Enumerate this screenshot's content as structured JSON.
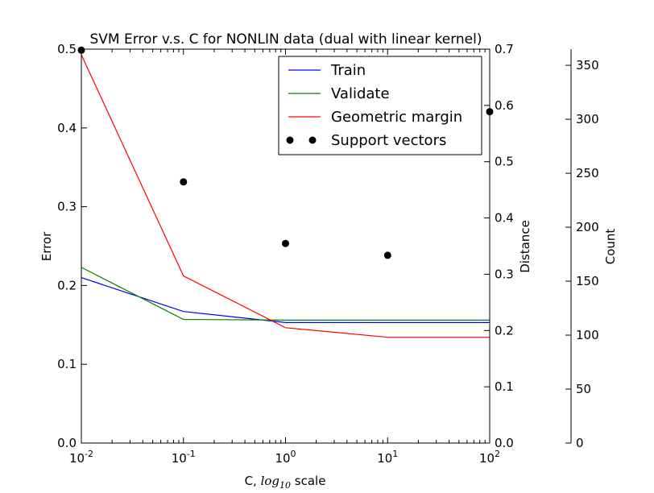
{
  "chart_data": {
    "type": "line",
    "title": "SVM Error v.s. C for NONLIN data (dual with linear kernel)",
    "x_axis": {
      "label_prefix": "C, ",
      "label_math": "log",
      "label_sub": "10",
      "label_suffix": " scale",
      "scale": "log",
      "range": [
        0.01,
        100
      ],
      "ticks": [
        {
          "value": 0.01,
          "base": "10",
          "exp": "-2"
        },
        {
          "value": 0.1,
          "base": "10",
          "exp": "-1"
        },
        {
          "value": 1,
          "base": "10",
          "exp": "0"
        },
        {
          "value": 10,
          "base": "10",
          "exp": "1"
        },
        {
          "value": 100,
          "base": "10",
          "exp": "2"
        }
      ]
    },
    "y_left": {
      "label": "Error",
      "range": [
        0,
        0.5
      ],
      "ticks": [
        "0.0",
        "0.1",
        "0.2",
        "0.3",
        "0.4",
        "0.5"
      ]
    },
    "y_right": {
      "label": "Distance",
      "range": [
        0,
        0.7
      ],
      "ticks": [
        "0.0",
        "0.1",
        "0.2",
        "0.3",
        "0.4",
        "0.5",
        "0.6",
        "0.7"
      ]
    },
    "y_count": {
      "label": "Count",
      "range": [
        0,
        365
      ],
      "ticks": [
        "0",
        "50",
        "100",
        "150",
        "200",
        "250",
        "300",
        "350"
      ]
    },
    "x": [
      0.01,
      0.1,
      1,
      10,
      100
    ],
    "series": [
      {
        "name": "Train",
        "axis": "left",
        "color": "#0000ff",
        "style": "line",
        "values": [
          0.21,
          0.167,
          0.153,
          0.153,
          0.153
        ]
      },
      {
        "name": "Validate",
        "axis": "left",
        "color": "#008000",
        "style": "line",
        "values": [
          0.223,
          0.157,
          0.156,
          0.156,
          0.156
        ]
      },
      {
        "name": "Geometric margin",
        "axis": "right",
        "color": "#ff0000",
        "style": "line",
        "values": [
          0.69,
          0.297,
          0.205,
          0.188,
          0.188
        ]
      },
      {
        "name": "Support vectors",
        "axis": "count",
        "color": "#000000",
        "style": "markers",
        "values": [
          364,
          242,
          185,
          174,
          307
        ]
      }
    ],
    "legend_position": "top-right",
    "grid": false
  }
}
